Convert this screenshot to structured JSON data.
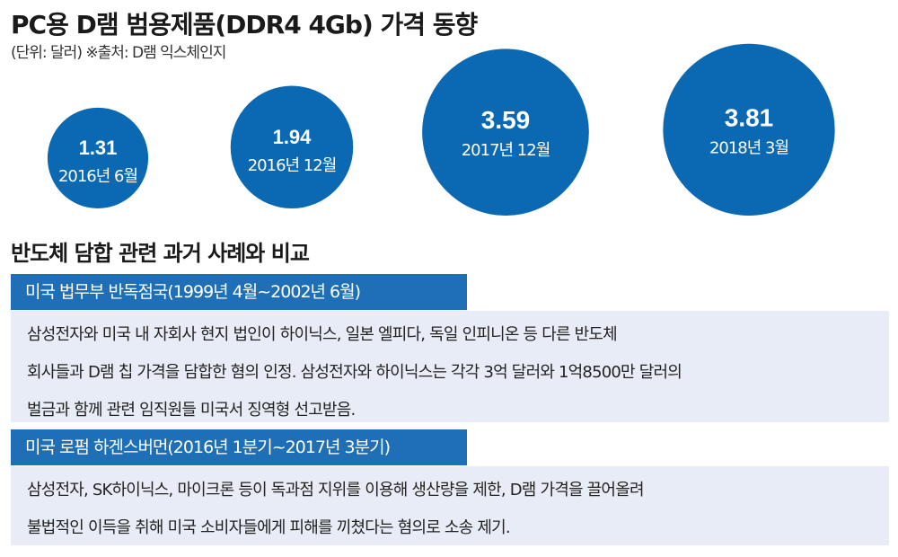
{
  "chart_data": {
    "type": "bubble",
    "title": "PC용 D램 범용제품(DDR4 4Gb) 가격 동향",
    "subtitle": "(단위: 달러) ※출처: D램 익스체인지",
    "categories": [
      "2016년 6월",
      "2016년 12월",
      "2017년 12월",
      "2018년 3월"
    ],
    "values": [
      1.31,
      1.94,
      3.59,
      3.81
    ],
    "labels": [
      "1.31",
      "1.94",
      "3.59",
      "3.81"
    ],
    "color": "#0b69b3"
  },
  "comparison": {
    "title": "반도체 담합 관련 과거 사례와 비교",
    "cases": [
      {
        "header": "미국 법무부 반독점국(1999년 4월~2002년 6월)",
        "lines": [
          "삼성전자와 미국 내 자회사 현지 법인이 하이닉스, 일본 엘피다, 독일 인피니온 등 다른 반도체",
          "회사들과 D램 칩 가격을 담합한 혐의 인정. 삼성전자와 하이닉스는 각각 3억 달러와 1억8500만 달러의",
          "벌금과 함께 관련 임직원들 미국서 징역형 선고받음."
        ]
      },
      {
        "header": "미국 로펌 하겐스버먼(2016년 1분기~2017년 3분기)",
        "lines": [
          "삼성전자, SK하이닉스, 마이크론 등이 독과점 지위를 이용해 생산량을 제한, D램 가격을 끌어올려",
          "불법적인 이득을 취해 미국 소비자들에게 피해를 끼쳤다는 혐의로 소송 제기."
        ]
      }
    ]
  }
}
